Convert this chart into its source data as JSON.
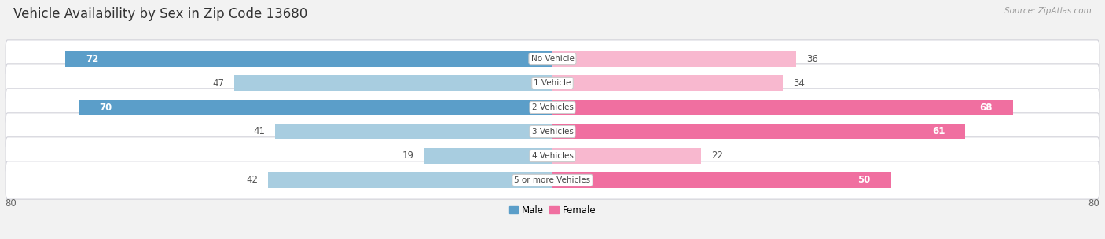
{
  "title": "Vehicle Availability by Sex in Zip Code 13680",
  "source": "Source: ZipAtlas.com",
  "categories": [
    "No Vehicle",
    "1 Vehicle",
    "2 Vehicles",
    "3 Vehicles",
    "4 Vehicles",
    "5 or more Vehicles"
  ],
  "male_values": [
    72,
    47,
    70,
    41,
    19,
    42
  ],
  "female_values": [
    36,
    34,
    68,
    61,
    22,
    50
  ],
  "male_color_dark": "#5b9ec9",
  "male_color_light": "#a8cde0",
  "female_color_dark": "#f06fa0",
  "female_color_light": "#f8b8cf",
  "male_threshold": 50,
  "female_threshold": 50,
  "xlim": 80,
  "bg_color": "#f2f2f2",
  "bar_height": 0.62,
  "title_fontsize": 12,
  "label_fontsize": 8
}
